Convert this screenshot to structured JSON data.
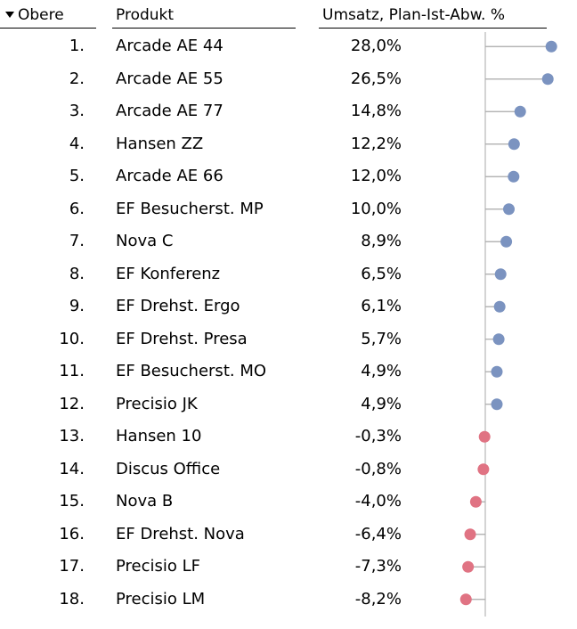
{
  "header": {
    "rank_label": "Obere",
    "product_label": "Produkt",
    "value_label": "Umsatz, Plan-Ist-Abw. %"
  },
  "colors": {
    "positive": "#7b93c0",
    "negative": "#e07383",
    "axis": "#b8b8b8",
    "stem": "#a8a8a8"
  },
  "rows": [
    {
      "rank": "1.",
      "product": "Arcade AE 44",
      "value_label": "28,0%"
    },
    {
      "rank": "2.",
      "product": "Arcade AE 55",
      "value_label": "26,5%"
    },
    {
      "rank": "3.",
      "product": "Arcade AE 77",
      "value_label": "14,8%"
    },
    {
      "rank": "4.",
      "product": "Hansen ZZ",
      "value_label": "12,2%"
    },
    {
      "rank": "5.",
      "product": "Arcade AE 66",
      "value_label": "12,0%"
    },
    {
      "rank": "6.",
      "product": "EF Besucherst. MP",
      "value_label": "10,0%"
    },
    {
      "rank": "7.",
      "product": "Nova C",
      "value_label": "8,9%"
    },
    {
      "rank": "8.",
      "product": "EF Konferenz",
      "value_label": "6,5%"
    },
    {
      "rank": "9.",
      "product": "EF Drehst. Ergo",
      "value_label": "6,1%"
    },
    {
      "rank": "10.",
      "product": "EF Drehst. Presa",
      "value_label": "5,7%"
    },
    {
      "rank": "11.",
      "product": "EF Besucherst. MO",
      "value_label": "4,9%"
    },
    {
      "rank": "12.",
      "product": "Precisio JK",
      "value_label": "4,9%"
    },
    {
      "rank": "13.",
      "product": "Hansen 10",
      "value_label": "-0,3%"
    },
    {
      "rank": "14.",
      "product": "Discus Office",
      "value_label": "-0,8%"
    },
    {
      "rank": "15.",
      "product": "Nova B",
      "value_label": "-4,0%"
    },
    {
      "rank": "16.",
      "product": "EF Drehst. Nova",
      "value_label": "-6,4%"
    },
    {
      "rank": "17.",
      "product": "Precisio LF",
      "value_label": "-7,3%"
    },
    {
      "rank": "18.",
      "product": "Precisio LM",
      "value_label": "-8,2%"
    }
  ],
  "chart_data": {
    "type": "lollipop",
    "title": "",
    "xlabel": "Umsatz, Plan-Ist-Abw. %",
    "ylabel": "",
    "categories": [
      "Arcade AE 44",
      "Arcade AE 55",
      "Arcade AE 77",
      "Hansen ZZ",
      "Arcade AE 66",
      "EF Besucherst. MP",
      "Nova C",
      "EF Konferenz",
      "EF Drehst. Ergo",
      "EF Drehst. Presa",
      "EF Besucherst. MO",
      "Precisio JK",
      "Hansen 10",
      "Discus Office",
      "Nova B",
      "EF Drehst. Nova",
      "Precisio LF",
      "Precisio LM"
    ],
    "values": [
      28.0,
      26.5,
      14.8,
      12.2,
      12.0,
      10.0,
      8.9,
      6.5,
      6.1,
      5.7,
      4.9,
      4.9,
      -0.3,
      -0.8,
      -4.0,
      -6.4,
      -7.3,
      -8.2
    ],
    "xlim": [
      -10,
      30
    ],
    "grid": false,
    "legend": "none"
  }
}
